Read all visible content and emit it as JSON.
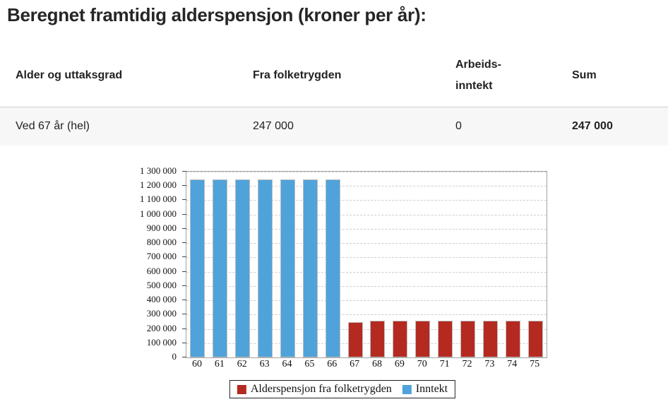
{
  "page": {
    "title": "Beregnet framtidig alderspensjon (kroner per år):"
  },
  "table": {
    "columns": [
      {
        "label": "Alder og uttaksgrad"
      },
      {
        "label": "Fra folketrygden"
      },
      {
        "label": "Arbeids-",
        "label2": "inntekt"
      },
      {
        "label": "Sum"
      }
    ],
    "rows": [
      {
        "cells": [
          "Ved 67 år (hel)",
          "247 000",
          "0",
          "247 000"
        ]
      }
    ]
  },
  "chart_data": {
    "type": "bar",
    "title": "",
    "xlabel": "",
    "ylabel": "",
    "categories": [
      "60",
      "61",
      "62",
      "63",
      "64",
      "65",
      "66",
      "67",
      "68",
      "69",
      "70",
      "71",
      "72",
      "73",
      "74",
      "75"
    ],
    "series": [
      {
        "name": "Alderspensjon fra folketrygden",
        "color": "#b52a20",
        "values": [
          0,
          0,
          0,
          0,
          0,
          0,
          0,
          247000,
          255000,
          255000,
          255000,
          255000,
          255000,
          255000,
          255000,
          255000
        ]
      },
      {
        "name": "Inntekt",
        "color": "#4fa3da",
        "values": [
          1245000,
          1245000,
          1245000,
          1245000,
          1245000,
          1245000,
          1245000,
          0,
          0,
          0,
          0,
          0,
          0,
          0,
          0,
          0
        ]
      }
    ],
    "ylim": [
      0,
      1300000
    ],
    "y_ticks": [
      {
        "v": 0,
        "label": "0"
      },
      {
        "v": 100000,
        "label": "100 000"
      },
      {
        "v": 200000,
        "label": "200 000"
      },
      {
        "v": 300000,
        "label": "300 000"
      },
      {
        "v": 400000,
        "label": "400 000"
      },
      {
        "v": 500000,
        "label": "500 000"
      },
      {
        "v": 600000,
        "label": "600 000"
      },
      {
        "v": 700000,
        "label": "700 000"
      },
      {
        "v": 800000,
        "label": "800 000"
      },
      {
        "v": 900000,
        "label": "900 000"
      },
      {
        "v": 1000000,
        "label": "1 000 000"
      },
      {
        "v": 1100000,
        "label": "1 100 000"
      },
      {
        "v": 1200000,
        "label": "1 200 000"
      },
      {
        "v": 1300000,
        "label": "1 300 000"
      }
    ],
    "grid": "horizontal-dashed",
    "legend_position": "bottom",
    "legend": [
      {
        "label": "Alderspensjon fra folketrygden",
        "color": "#b52a20"
      },
      {
        "label": "Inntekt",
        "color": "#4fa3da"
      }
    ]
  }
}
